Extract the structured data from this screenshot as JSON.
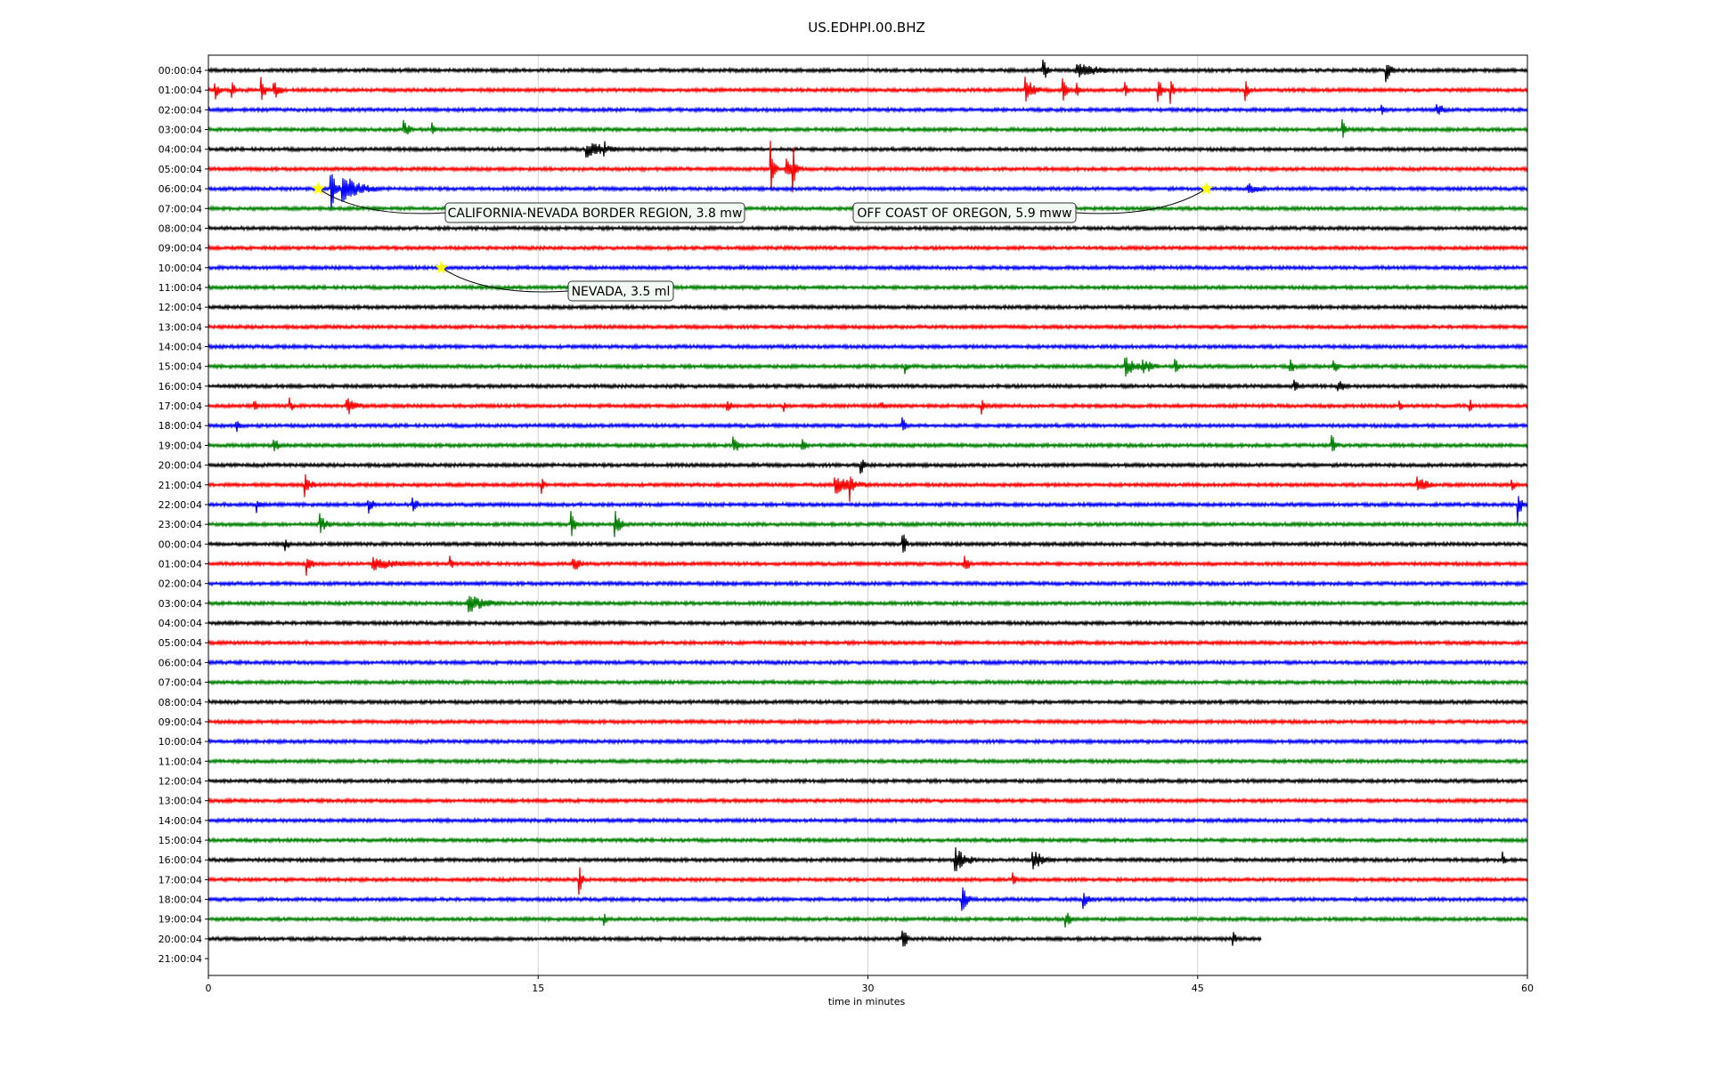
{
  "chart_data": {
    "type": "line",
    "title": "US.EDHPI.00.BHZ",
    "xlabel": "time in minutes",
    "ylabel": "",
    "xlim": [
      0,
      60
    ],
    "xticks": [
      0,
      15,
      30,
      45,
      60
    ],
    "x_gridlines": [
      15,
      30,
      45
    ],
    "row_labels": [
      "00:00:04",
      "01:00:04",
      "02:00:04",
      "03:00:04",
      "04:00:04",
      "05:00:04",
      "06:00:04",
      "07:00:04",
      "08:00:04",
      "09:00:04",
      "10:00:04",
      "11:00:04",
      "12:00:04",
      "13:00:04",
      "14:00:04",
      "15:00:04",
      "16:00:04",
      "17:00:04",
      "18:00:04",
      "19:00:04",
      "20:00:04",
      "21:00:04",
      "22:00:04",
      "23:00:04",
      "00:00:04",
      "01:00:04",
      "02:00:04",
      "03:00:04",
      "04:00:04",
      "05:00:04",
      "06:00:04",
      "07:00:04",
      "08:00:04",
      "09:00:04",
      "10:00:04",
      "11:00:04",
      "12:00:04",
      "13:00:04",
      "14:00:04",
      "15:00:04",
      "16:00:04",
      "17:00:04",
      "18:00:04",
      "19:00:04",
      "20:00:04",
      "21:00:04"
    ],
    "trace_colors": [
      "#000000",
      "#ff0000",
      "#0000ff",
      "#008000"
    ],
    "last_trace_end_minute": 47.9,
    "events": [
      {
        "row": 6,
        "minute": 5.0,
        "label": "CALIFORNIA-NEVADA BORDER REGION, 3.8 mw",
        "marker_color": "#ffff00"
      },
      {
        "row": 6,
        "minute": 45.4,
        "label": "OFF COAST OF OREGON, 5.9 mww",
        "marker_color": "#ffff00"
      },
      {
        "row": 10,
        "minute": 10.6,
        "label": "NEVADA, 3.5 ml",
        "marker_color": "#ffff00"
      }
    ],
    "bursts": [
      {
        "row": 0,
        "minute": 38.0,
        "amp": 0.5,
        "dur": 0.4
      },
      {
        "row": 0,
        "minute": 39.5,
        "amp": 0.35,
        "dur": 2.5
      },
      {
        "row": 0,
        "minute": 53.6,
        "amp": 0.55,
        "dur": 0.5
      },
      {
        "row": 1,
        "minute": 0.3,
        "amp": 0.45,
        "dur": 0.5
      },
      {
        "row": 1,
        "minute": 1.1,
        "amp": 0.4,
        "dur": 0.3
      },
      {
        "row": 1,
        "minute": 2.4,
        "amp": 0.6,
        "dur": 0.4
      },
      {
        "row": 1,
        "minute": 3.0,
        "amp": 0.45,
        "dur": 0.6
      },
      {
        "row": 1,
        "minute": 37.2,
        "amp": 0.55,
        "dur": 0.8
      },
      {
        "row": 1,
        "minute": 38.9,
        "amp": 0.45,
        "dur": 0.4
      },
      {
        "row": 1,
        "minute": 39.5,
        "amp": 0.35,
        "dur": 0.3
      },
      {
        "row": 1,
        "minute": 41.7,
        "amp": 0.35,
        "dur": 0.3
      },
      {
        "row": 1,
        "minute": 43.2,
        "amp": 0.55,
        "dur": 0.4
      },
      {
        "row": 1,
        "minute": 43.8,
        "amp": 0.45,
        "dur": 0.3
      },
      {
        "row": 1,
        "minute": 47.2,
        "amp": 0.45,
        "dur": 0.3
      },
      {
        "row": 2,
        "minute": 53.4,
        "amp": 0.3,
        "dur": 0.3
      },
      {
        "row": 2,
        "minute": 55.9,
        "amp": 0.45,
        "dur": 0.5
      },
      {
        "row": 3,
        "minute": 8.9,
        "amp": 0.4,
        "dur": 0.6
      },
      {
        "row": 3,
        "minute": 10.2,
        "amp": 0.3,
        "dur": 0.3
      },
      {
        "row": 3,
        "minute": 51.6,
        "amp": 0.4,
        "dur": 0.4
      },
      {
        "row": 4,
        "minute": 17.2,
        "amp": 0.4,
        "dur": 2.0
      },
      {
        "row": 4,
        "minute": 18.0,
        "amp": 0.45,
        "dur": 0.4
      },
      {
        "row": 5,
        "minute": 25.6,
        "amp": 1.0,
        "dur": 0.3
      },
      {
        "row": 5,
        "minute": 26.3,
        "amp": 0.45,
        "dur": 1.0
      },
      {
        "row": 5,
        "minute": 26.6,
        "amp": 1.15,
        "dur": 0.2
      },
      {
        "row": 6,
        "minute": 5.6,
        "amp": 0.95,
        "dur": 0.4
      },
      {
        "row": 6,
        "minute": 6.1,
        "amp": 0.65,
        "dur": 1.8
      },
      {
        "row": 6,
        "minute": 47.3,
        "amp": 0.3,
        "dur": 1.2
      },
      {
        "row": 15,
        "minute": 31.7,
        "amp": 0.3,
        "dur": 0.3
      },
      {
        "row": 15,
        "minute": 41.7,
        "amp": 0.5,
        "dur": 1.0
      },
      {
        "row": 15,
        "minute": 42.5,
        "amp": 0.4,
        "dur": 1.0
      },
      {
        "row": 15,
        "minute": 44.0,
        "amp": 0.4,
        "dur": 0.3
      },
      {
        "row": 15,
        "minute": 49.2,
        "amp": 0.45,
        "dur": 0.4
      },
      {
        "row": 15,
        "minute": 51.2,
        "amp": 0.4,
        "dur": 0.4
      },
      {
        "row": 16,
        "minute": 49.4,
        "amp": 0.35,
        "dur": 0.4
      },
      {
        "row": 16,
        "minute": 51.4,
        "amp": 0.3,
        "dur": 0.8
      },
      {
        "row": 17,
        "minute": 2.1,
        "amp": 0.3,
        "dur": 0.3
      },
      {
        "row": 17,
        "minute": 3.7,
        "amp": 0.35,
        "dur": 0.4
      },
      {
        "row": 17,
        "minute": 6.3,
        "amp": 0.45,
        "dur": 0.9
      },
      {
        "row": 17,
        "minute": 23.6,
        "amp": 0.35,
        "dur": 0.4
      },
      {
        "row": 17,
        "minute": 26.2,
        "amp": 0.3,
        "dur": 0.3
      },
      {
        "row": 17,
        "minute": 30.6,
        "amp": 0.3,
        "dur": 0.3
      },
      {
        "row": 17,
        "minute": 35.2,
        "amp": 0.3,
        "dur": 0.3
      },
      {
        "row": 17,
        "minute": 54.2,
        "amp": 0.3,
        "dur": 0.3
      },
      {
        "row": 17,
        "minute": 57.4,
        "amp": 0.3,
        "dur": 0.3
      },
      {
        "row": 18,
        "minute": 1.3,
        "amp": 0.3,
        "dur": 0.3
      },
      {
        "row": 18,
        "minute": 31.6,
        "amp": 0.35,
        "dur": 0.3
      },
      {
        "row": 19,
        "minute": 3.0,
        "amp": 0.4,
        "dur": 0.4
      },
      {
        "row": 19,
        "minute": 23.9,
        "amp": 0.45,
        "dur": 0.5
      },
      {
        "row": 19,
        "minute": 27.0,
        "amp": 0.45,
        "dur": 0.3
      },
      {
        "row": 19,
        "minute": 51.1,
        "amp": 0.55,
        "dur": 0.4
      },
      {
        "row": 20,
        "minute": 29.7,
        "amp": 0.4,
        "dur": 0.5
      },
      {
        "row": 21,
        "minute": 4.4,
        "amp": 0.5,
        "dur": 0.6
      },
      {
        "row": 21,
        "minute": 15.2,
        "amp": 0.3,
        "dur": 0.3
      },
      {
        "row": 21,
        "minute": 28.5,
        "amp": 0.5,
        "dur": 1.8
      },
      {
        "row": 21,
        "minute": 29.2,
        "amp": 0.6,
        "dur": 0.3
      },
      {
        "row": 21,
        "minute": 55.0,
        "amp": 0.45,
        "dur": 0.9
      },
      {
        "row": 21,
        "minute": 59.3,
        "amp": 0.35,
        "dur": 0.4
      },
      {
        "row": 22,
        "minute": 2.2,
        "amp": 0.4,
        "dur": 0.4
      },
      {
        "row": 22,
        "minute": 7.3,
        "amp": 0.4,
        "dur": 0.5
      },
      {
        "row": 22,
        "minute": 9.3,
        "amp": 0.4,
        "dur": 0.5
      },
      {
        "row": 22,
        "minute": 59.6,
        "amp": 0.65,
        "dur": 0.3
      },
      {
        "row": 23,
        "minute": 5.1,
        "amp": 0.45,
        "dur": 0.6
      },
      {
        "row": 23,
        "minute": 16.5,
        "amp": 0.6,
        "dur": 0.4
      },
      {
        "row": 23,
        "minute": 18.5,
        "amp": 0.65,
        "dur": 0.5
      },
      {
        "row": 24,
        "minute": 3.5,
        "amp": 0.3,
        "dur": 0.5
      },
      {
        "row": 24,
        "minute": 31.6,
        "amp": 0.55,
        "dur": 0.3
      },
      {
        "row": 25,
        "minute": 4.5,
        "amp": 0.45,
        "dur": 0.5
      },
      {
        "row": 25,
        "minute": 7.5,
        "amp": 0.3,
        "dur": 3.0
      },
      {
        "row": 25,
        "minute": 11.0,
        "amp": 0.35,
        "dur": 0.3
      },
      {
        "row": 25,
        "minute": 16.6,
        "amp": 0.45,
        "dur": 0.6
      },
      {
        "row": 25,
        "minute": 34.4,
        "amp": 0.35,
        "dur": 0.7
      },
      {
        "row": 27,
        "minute": 11.8,
        "amp": 0.45,
        "dur": 1.8
      },
      {
        "row": 40,
        "minute": 34.0,
        "amp": 0.55,
        "dur": 1.2
      },
      {
        "row": 40,
        "minute": 37.5,
        "amp": 0.5,
        "dur": 1.0
      },
      {
        "row": 40,
        "minute": 58.9,
        "amp": 0.3,
        "dur": 0.3
      },
      {
        "row": 41,
        "minute": 16.9,
        "amp": 0.55,
        "dur": 0.3
      },
      {
        "row": 41,
        "minute": 36.6,
        "amp": 0.3,
        "dur": 0.4
      },
      {
        "row": 42,
        "minute": 34.3,
        "amp": 0.55,
        "dur": 0.6
      },
      {
        "row": 42,
        "minute": 39.8,
        "amp": 0.45,
        "dur": 0.6
      },
      {
        "row": 43,
        "minute": 18.0,
        "amp": 0.3,
        "dur": 0.3
      },
      {
        "row": 43,
        "minute": 39.0,
        "amp": 0.45,
        "dur": 0.5
      },
      {
        "row": 44,
        "minute": 31.6,
        "amp": 0.6,
        "dur": 0.4
      },
      {
        "row": 44,
        "minute": 46.6,
        "amp": 0.4,
        "dur": 0.3
      }
    ]
  }
}
